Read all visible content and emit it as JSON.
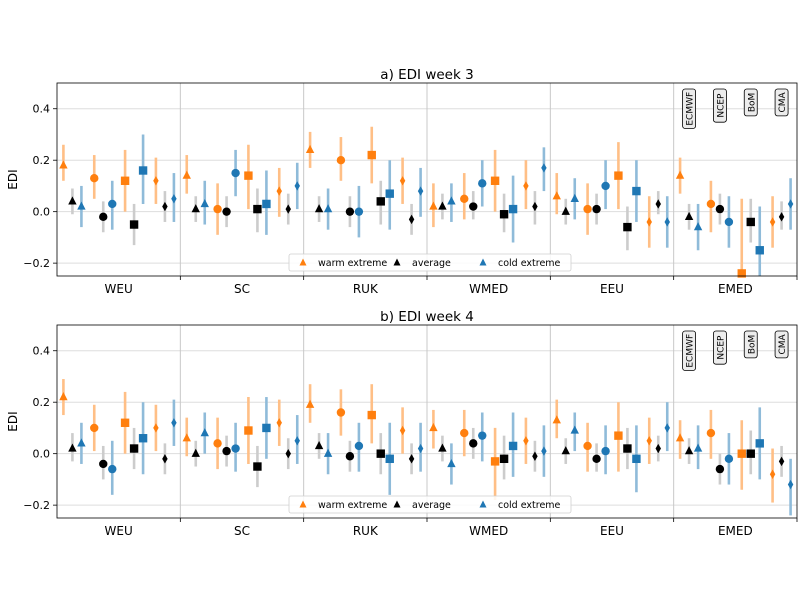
{
  "chart_data": [
    {
      "type": "scatter",
      "title": "a) EDI week 3",
      "xlabel": "",
      "ylabel": "EDI",
      "ylim": [
        -0.25,
        0.5
      ],
      "yticks": [
        -0.2,
        0.0,
        0.2,
        0.4
      ],
      "ytick_labels": [
        "−0.2",
        "0.0",
        "0.2",
        "0.4"
      ],
      "grid": true,
      "legend_position": "bottom-center",
      "regions": [
        "WEU",
        "SC",
        "RUK",
        "WMED",
        "EEU",
        "EMED"
      ],
      "models": [
        "ECMWF",
        "NCEP",
        "BoM",
        "CMA"
      ],
      "model_annotation_region": "EMED",
      "series": [
        {
          "name": "warm extreme",
          "values": [
            [
              0.18,
              0.13,
              0.12,
              0.12
            ],
            [
              0.14,
              0.01,
              0.14,
              0.08
            ],
            [
              0.24,
              0.2,
              0.22,
              0.12
            ],
            [
              0.02,
              0.05,
              0.12,
              0.1
            ],
            [
              0.06,
              0.01,
              0.14,
              -0.04
            ],
            [
              0.14,
              0.03,
              -0.24,
              -0.04
            ]
          ],
          "low": [
            [
              0.12,
              0.05,
              0.0,
              0.03
            ],
            [
              0.07,
              -0.09,
              0.01,
              -0.02
            ],
            [
              0.17,
              0.12,
              0.11,
              0.03
            ],
            [
              -0.06,
              -0.03,
              0.0,
              0.01
            ],
            [
              -0.01,
              -0.09,
              0.01,
              -0.14
            ],
            [
              0.07,
              -0.08,
              -0.25,
              -0.14
            ]
          ],
          "high": [
            [
              0.26,
              0.22,
              0.24,
              0.21
            ],
            [
              0.22,
              0.11,
              0.26,
              0.17
            ],
            [
              0.31,
              0.29,
              0.33,
              0.21
            ],
            [
              0.11,
              0.15,
              0.24,
              0.2
            ],
            [
              0.15,
              0.11,
              0.27,
              0.06
            ],
            [
              0.21,
              0.12,
              0.05,
              0.06
            ]
          ]
        },
        {
          "name": "average",
          "values": [
            [
              0.04,
              -0.02,
              -0.05,
              0.02
            ],
            [
              0.01,
              0.0,
              0.01,
              0.01
            ],
            [
              0.01,
              0.0,
              0.04,
              -0.03
            ],
            [
              0.02,
              0.02,
              -0.01,
              0.02
            ],
            [
              0.0,
              0.01,
              -0.06,
              0.03
            ],
            [
              -0.02,
              0.01,
              -0.04,
              -0.02
            ]
          ],
          "low": [
            [
              -0.01,
              -0.08,
              -0.13,
              -0.04
            ],
            [
              -0.04,
              -0.06,
              -0.08,
              -0.05
            ],
            [
              -0.04,
              -0.06,
              -0.05,
              -0.09
            ],
            [
              -0.03,
              -0.03,
              -0.08,
              -0.05
            ],
            [
              -0.05,
              -0.05,
              -0.15,
              -0.01
            ],
            [
              -0.07,
              -0.05,
              -0.12,
              -0.07
            ]
          ],
          "high": [
            [
              0.09,
              0.04,
              0.03,
              0.08
            ],
            [
              0.06,
              0.06,
              0.09,
              0.07
            ],
            [
              0.06,
              0.06,
              0.12,
              0.03
            ],
            [
              0.07,
              0.08,
              0.07,
              0.08
            ],
            [
              0.05,
              0.07,
              0.02,
              0.08
            ],
            [
              0.03,
              0.07,
              0.05,
              0.04
            ]
          ]
        },
        {
          "name": "cold extreme",
          "values": [
            [
              0.02,
              0.03,
              0.16,
              0.05
            ],
            [
              0.03,
              0.15,
              0.03,
              0.1
            ],
            [
              0.01,
              0.0,
              0.07,
              0.08
            ],
            [
              0.04,
              0.11,
              0.01,
              0.17
            ],
            [
              0.05,
              0.1,
              0.08,
              -0.04
            ],
            [
              -0.06,
              -0.04,
              -0.15,
              0.03
            ]
          ],
          "low": [
            [
              -0.06,
              -0.07,
              0.03,
              -0.04
            ],
            [
              -0.05,
              0.06,
              -0.09,
              0.01
            ],
            [
              -0.07,
              -0.1,
              -0.07,
              -0.02
            ],
            [
              -0.04,
              0.02,
              -0.12,
              0.08
            ],
            [
              -0.03,
              0.01,
              -0.04,
              -0.14
            ],
            [
              -0.15,
              -0.14,
              -0.25,
              -0.07
            ]
          ],
          "high": [
            [
              0.1,
              0.12,
              0.3,
              0.15
            ],
            [
              0.12,
              0.24,
              0.16,
              0.19
            ],
            [
              0.09,
              0.1,
              0.2,
              0.17
            ],
            [
              0.11,
              0.2,
              0.14,
              0.25
            ],
            [
              0.13,
              0.2,
              0.2,
              0.06
            ],
            [
              0.03,
              0.06,
              0.02,
              0.13
            ]
          ]
        }
      ]
    },
    {
      "type": "scatter",
      "title": "b) EDI week 4",
      "xlabel": "",
      "ylabel": "EDI",
      "ylim": [
        -0.25,
        0.5
      ],
      "yticks": [
        -0.2,
        0.0,
        0.2,
        0.4
      ],
      "ytick_labels": [
        "−0.2",
        "0.0",
        "0.2",
        "0.4"
      ],
      "grid": true,
      "legend_position": "bottom-center",
      "regions": [
        "WEU",
        "SC",
        "RUK",
        "WMED",
        "EEU",
        "EMED"
      ],
      "models": [
        "ECMWF",
        "NCEP",
        "BoM",
        "CMA"
      ],
      "model_annotation_region": "EMED",
      "series": [
        {
          "name": "warm extreme",
          "values": [
            [
              0.22,
              0.1,
              0.12,
              0.1
            ],
            [
              0.06,
              0.04,
              0.09,
              0.12
            ],
            [
              0.19,
              0.16,
              0.15,
              0.09
            ],
            [
              0.1,
              0.08,
              -0.03,
              0.05
            ],
            [
              0.13,
              0.03,
              0.07,
              0.05
            ],
            [
              0.06,
              0.08,
              0.0,
              -0.08
            ]
          ],
          "low": [
            [
              0.15,
              0.01,
              0.0,
              0.01
            ],
            [
              -0.01,
              -0.06,
              -0.04,
              0.03
            ],
            [
              0.12,
              0.07,
              0.04,
              0.0
            ],
            [
              0.02,
              -0.01,
              -0.18,
              -0.04
            ],
            [
              0.06,
              -0.07,
              -0.07,
              -0.04
            ],
            [
              -0.02,
              -0.02,
              -0.14,
              -0.19
            ]
          ],
          "high": [
            [
              0.29,
              0.19,
              0.24,
              0.19
            ],
            [
              0.14,
              0.14,
              0.22,
              0.21
            ],
            [
              0.27,
              0.25,
              0.27,
              0.18
            ],
            [
              0.17,
              0.17,
              0.1,
              0.14
            ],
            [
              0.21,
              0.12,
              0.2,
              0.14
            ],
            [
              0.13,
              0.17,
              0.13,
              0.02
            ]
          ]
        },
        {
          "name": "average",
          "values": [
            [
              0.02,
              -0.04,
              0.02,
              -0.02
            ],
            [
              0.0,
              0.01,
              -0.05,
              0.0
            ],
            [
              0.03,
              -0.01,
              0.0,
              -0.02
            ],
            [
              0.02,
              0.04,
              -0.02,
              -0.01
            ],
            [
              0.01,
              -0.02,
              0.02,
              0.02
            ],
            [
              0.01,
              -0.06,
              0.0,
              -0.03
            ]
          ],
          "low": [
            [
              -0.03,
              -0.1,
              -0.06,
              -0.08
            ],
            [
              -0.05,
              -0.05,
              -0.13,
              -0.06
            ],
            [
              -0.02,
              -0.07,
              -0.08,
              -0.08
            ],
            [
              -0.03,
              -0.02,
              -0.1,
              -0.07
            ],
            [
              -0.04,
              -0.07,
              -0.06,
              -0.03
            ],
            [
              -0.04,
              -0.12,
              -0.08,
              -0.09
            ]
          ],
          "high": [
            [
              0.08,
              0.03,
              0.1,
              0.04
            ],
            [
              0.05,
              0.07,
              0.03,
              0.06
            ],
            [
              0.08,
              0.05,
              0.08,
              0.04
            ],
            [
              0.07,
              0.1,
              0.07,
              0.05
            ],
            [
              0.06,
              0.04,
              0.1,
              0.07
            ],
            [
              0.06,
              0.0,
              0.09,
              0.03
            ]
          ]
        },
        {
          "name": "cold extreme",
          "values": [
            [
              0.04,
              -0.06,
              0.06,
              0.12
            ],
            [
              0.08,
              0.02,
              0.1,
              0.05
            ],
            [
              0.0,
              0.03,
              -0.02,
              0.02
            ],
            [
              -0.04,
              0.07,
              0.03,
              0.01
            ],
            [
              0.09,
              0.01,
              -0.02,
              0.1
            ],
            [
              0.02,
              -0.02,
              0.04,
              -0.12
            ]
          ],
          "low": [
            [
              -0.04,
              -0.16,
              -0.08,
              0.03
            ],
            [
              0.0,
              -0.07,
              -0.02,
              -0.04
            ],
            [
              -0.08,
              -0.07,
              -0.16,
              -0.07
            ],
            [
              -0.12,
              -0.03,
              -0.09,
              -0.09
            ],
            [
              0.01,
              -0.08,
              -0.15,
              0.01
            ],
            [
              -0.06,
              -0.12,
              -0.1,
              -0.24
            ]
          ],
          "high": [
            [
              0.12,
              0.05,
              0.2,
              0.21
            ],
            [
              0.16,
              0.12,
              0.22,
              0.15
            ],
            [
              0.08,
              0.12,
              0.12,
              0.12
            ],
            [
              0.04,
              0.16,
              0.16,
              0.11
            ],
            [
              0.16,
              0.11,
              0.11,
              0.2
            ],
            [
              0.11,
              0.08,
              0.18,
              -0.02
            ]
          ]
        }
      ]
    }
  ],
  "legend": {
    "items": [
      "warm extreme",
      "average",
      "cold extreme"
    ]
  },
  "colors": {
    "warm": "#ff7f0e",
    "warm_err": "#ffbf86",
    "average": "#000000",
    "average_err": "#cccccc",
    "cold": "#1f77b4",
    "cold_err": "#8fbbd9"
  }
}
